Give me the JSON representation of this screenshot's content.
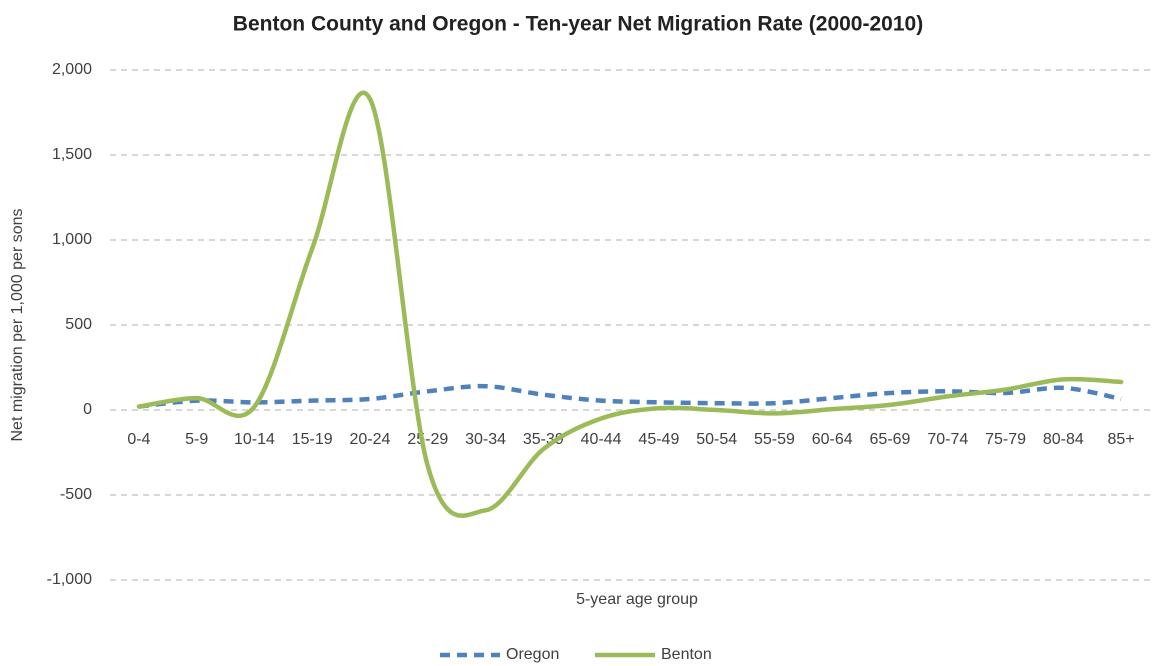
{
  "chart_data": {
    "type": "line",
    "title": "Benton County and Oregon - Ten-year Net Migration Rate (2000-2010)",
    "x_label": "5-year age group",
    "y_label": "Net migration per 1,000 per sons",
    "categories": [
      "0-4",
      "5-9",
      "10-14",
      "15-19",
      "20-24",
      "25-29",
      "30-34",
      "35-39",
      "40-44",
      "45-49",
      "50-54",
      "55-59",
      "60-64",
      "65-69",
      "70-74",
      "75-79",
      "80-84",
      "85+"
    ],
    "series": [
      {
        "name": "Oregon",
        "color": "#4f81bd",
        "dashed": true,
        "values": [
          20,
          55,
          45,
          55,
          65,
          110,
          140,
          90,
          55,
          45,
          40,
          40,
          70,
          100,
          110,
          100,
          130,
          65
        ]
      },
      {
        "name": "Benton",
        "color": "#9bbb59",
        "dashed": false,
        "values": [
          20,
          70,
          20,
          950,
          1830,
          -330,
          -590,
          -230,
          -50,
          10,
          0,
          -20,
          5,
          30,
          80,
          120,
          180,
          165
        ]
      }
    ],
    "ylim": [
      -1000,
      2000
    ],
    "yticks": [
      {
        "value": -1000,
        "label": "-1,000"
      },
      -500,
      0,
      500,
      {
        "value": 1000,
        "label": "1,000"
      },
      {
        "value": 1500,
        "label": "1,500"
      },
      {
        "value": 2000,
        "label": "2,000"
      }
    ],
    "grid": true,
    "legend": "bottom",
    "smooth": true
  }
}
